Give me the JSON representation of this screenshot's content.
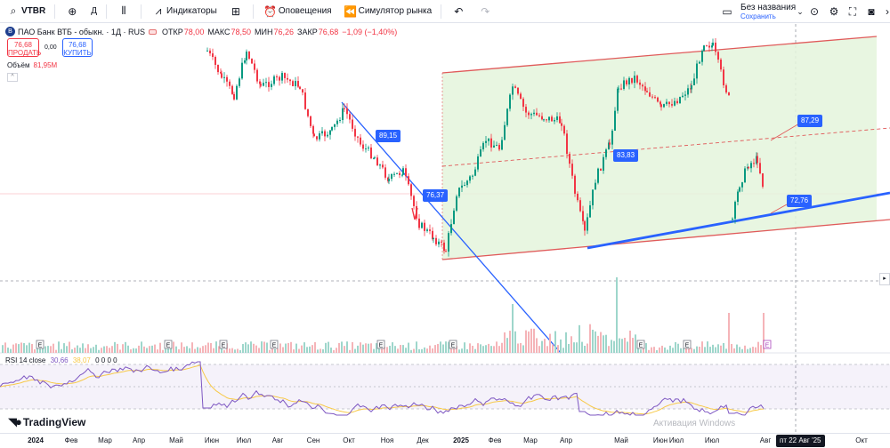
{
  "toolbar": {
    "symbol": "VTBR",
    "interval": "Д",
    "indicators_label": "Индикаторы",
    "alerts_label": "Оповещения",
    "replay_label": "Симулятор рынка",
    "layout_name": "Без названия",
    "layout_status": "Сохранить"
  },
  "legend": {
    "title": "ПАО Банк ВТБ - обыкн. · 1Д · RUS",
    "open_label": "ОТКР",
    "open": "78,00",
    "high_label": "МАКС",
    "high": "78,50",
    "low_label": "МИН",
    "low": "76,26",
    "close_label": "ЗАКР",
    "close": "76,68",
    "change": "−1,09 (−1,40%)",
    "sell_price": "76,68",
    "sell_label": "ПРОДАТЬ",
    "buy_price": "76,68",
    "buy_label": "КУПИТЬ",
    "spread": "0,00",
    "volume_label": "Объём",
    "volume": "81,95M"
  },
  "price_tags": {
    "t1": "89,15",
    "t2": "76,37",
    "t3": "83,83",
    "t4": "87,29",
    "t5": "72,76"
  },
  "earnings_marker": "E",
  "rsi": {
    "label": "RSI 14 close",
    "value1": "30,66",
    "value2": "38,07",
    "zeros": "0 0 0 0"
  },
  "brand": "TradingView",
  "watermark": "Активация Windows",
  "time_axis": {
    "ticks": [
      "2024",
      "Фев",
      "Мар",
      "Апр",
      "Май",
      "Июн",
      "Июл",
      "Авг",
      "Сен",
      "Окт",
      "Ноя",
      "Дек",
      "2025",
      "Фев",
      "Мар",
      "Апр",
      "Май",
      "Июн",
      "Июл",
      "Июл",
      "Авг",
      "Окт"
    ],
    "cursor_date": "пт 22 Авг '25"
  },
  "colors": {
    "up": "#089981",
    "down": "#f23645",
    "channel_fill": "#e4f4dc",
    "channel_line": "#e05a5a",
    "trend_blue": "#2962ff",
    "rsi_line": "#7e57c2",
    "rsi_ma": "#f7c948"
  }
}
